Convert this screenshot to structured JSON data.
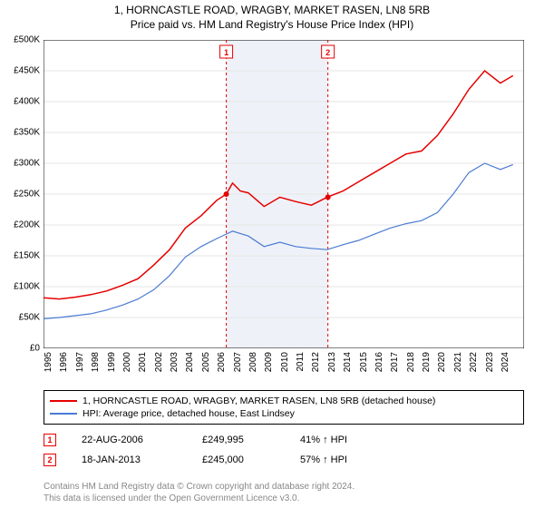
{
  "title_line1": "1, HORNCASTLE ROAD, WRAGBY, MARKET RASEN, LN8 5RB",
  "title_line2": "Price paid vs. HM Land Registry's House Price Index (HPI)",
  "chart": {
    "type": "line",
    "background_color": "#ffffff",
    "grid_color": "#e5e5e5",
    "axis_color": "#000000",
    "x_years": [
      1995,
      1996,
      1997,
      1998,
      1999,
      2000,
      2001,
      2002,
      2003,
      2004,
      2005,
      2006,
      2007,
      2008,
      2009,
      2010,
      2011,
      2012,
      2013,
      2014,
      2015,
      2016,
      2017,
      2018,
      2019,
      2020,
      2021,
      2022,
      2023,
      2024
    ],
    "x_range": [
      1995,
      2025.5
    ],
    "y_ticks": [
      0,
      50000,
      100000,
      150000,
      200000,
      250000,
      300000,
      350000,
      400000,
      450000,
      500000
    ],
    "y_tick_labels": [
      "£0",
      "£50K",
      "£100K",
      "£150K",
      "£200K",
      "£250K",
      "£300K",
      "£350K",
      "£400K",
      "£450K",
      "£500K"
    ],
    "y_range": [
      0,
      500000
    ],
    "series": [
      {
        "name": "property",
        "label": "1, HORNCASTLE ROAD, WRAGBY, MARKET RASEN, LN8 5RB (detached house)",
        "color": "#e60000",
        "stroke_width": 1.5,
        "points": [
          [
            1995,
            82000
          ],
          [
            1996,
            80000
          ],
          [
            1997,
            83000
          ],
          [
            1998,
            87000
          ],
          [
            1999,
            93000
          ],
          [
            2000,
            102000
          ],
          [
            2001,
            113000
          ],
          [
            2002,
            135000
          ],
          [
            2003,
            160000
          ],
          [
            2004,
            195000
          ],
          [
            2005,
            215000
          ],
          [
            2006,
            240000
          ],
          [
            2006.6,
            249995
          ],
          [
            2007,
            268000
          ],
          [
            2007.5,
            255000
          ],
          [
            2008,
            252000
          ],
          [
            2009,
            230000
          ],
          [
            2010,
            245000
          ],
          [
            2011,
            238000
          ],
          [
            2012,
            232000
          ],
          [
            2013,
            245000
          ],
          [
            2014,
            255000
          ],
          [
            2015,
            270000
          ],
          [
            2016,
            285000
          ],
          [
            2017,
            300000
          ],
          [
            2018,
            315000
          ],
          [
            2019,
            320000
          ],
          [
            2020,
            345000
          ],
          [
            2021,
            380000
          ],
          [
            2022,
            420000
          ],
          [
            2023,
            450000
          ],
          [
            2024,
            430000
          ],
          [
            2024.8,
            442000
          ]
        ]
      },
      {
        "name": "hpi",
        "label": "HPI: Average price, detached house, East Lindsey",
        "color": "#4a7bd4",
        "stroke_width": 1.2,
        "points": [
          [
            1995,
            48000
          ],
          [
            1996,
            50000
          ],
          [
            1997,
            53000
          ],
          [
            1998,
            56000
          ],
          [
            1999,
            62000
          ],
          [
            2000,
            70000
          ],
          [
            2001,
            80000
          ],
          [
            2002,
            95000
          ],
          [
            2003,
            118000
          ],
          [
            2004,
            148000
          ],
          [
            2005,
            165000
          ],
          [
            2006,
            178000
          ],
          [
            2007,
            190000
          ],
          [
            2008,
            182000
          ],
          [
            2009,
            165000
          ],
          [
            2010,
            172000
          ],
          [
            2011,
            165000
          ],
          [
            2012,
            162000
          ],
          [
            2013,
            160000
          ],
          [
            2014,
            168000
          ],
          [
            2015,
            175000
          ],
          [
            2016,
            185000
          ],
          [
            2017,
            195000
          ],
          [
            2018,
            202000
          ],
          [
            2019,
            207000
          ],
          [
            2020,
            220000
          ],
          [
            2021,
            250000
          ],
          [
            2022,
            285000
          ],
          [
            2023,
            300000
          ],
          [
            2024,
            290000
          ],
          [
            2024.8,
            298000
          ]
        ]
      }
    ],
    "shaded_band": {
      "x_start": 2006.6,
      "x_end": 2013.05,
      "fill": "#cfd9ea",
      "opacity": 0.35
    },
    "markers": [
      {
        "label": "1",
        "x": 2006.6,
        "y": 249995,
        "color": "#e60000"
      },
      {
        "label": "2",
        "x": 2013.05,
        "y": 245000,
        "color": "#e60000"
      }
    ],
    "marker_line_color": "#e60000",
    "marker_line_dash": "3,3",
    "marker_box_border": "#e60000",
    "marker_box_fill": "#ffffff",
    "font_size_ticks": 10,
    "font_size_title": 12
  },
  "legend": {
    "items": [
      {
        "color": "#e60000",
        "text": "1, HORNCASTLE ROAD, WRAGBY, MARKET RASEN, LN8 5RB (detached house)"
      },
      {
        "color": "#4a7bd4",
        "text": "HPI: Average price, detached house, East Lindsey"
      }
    ]
  },
  "sales": [
    {
      "label": "1",
      "color": "#e60000",
      "date": "22-AUG-2006",
      "price": "£249,995",
      "hpi": "41% ↑ HPI"
    },
    {
      "label": "2",
      "color": "#e60000",
      "date": "18-JAN-2013",
      "price": "£245,000",
      "hpi": "57% ↑ HPI"
    }
  ],
  "credit_line1": "Contains HM Land Registry data © Crown copyright and database right 2024.",
  "credit_line2": "This data is licensed under the Open Government Licence v3.0."
}
